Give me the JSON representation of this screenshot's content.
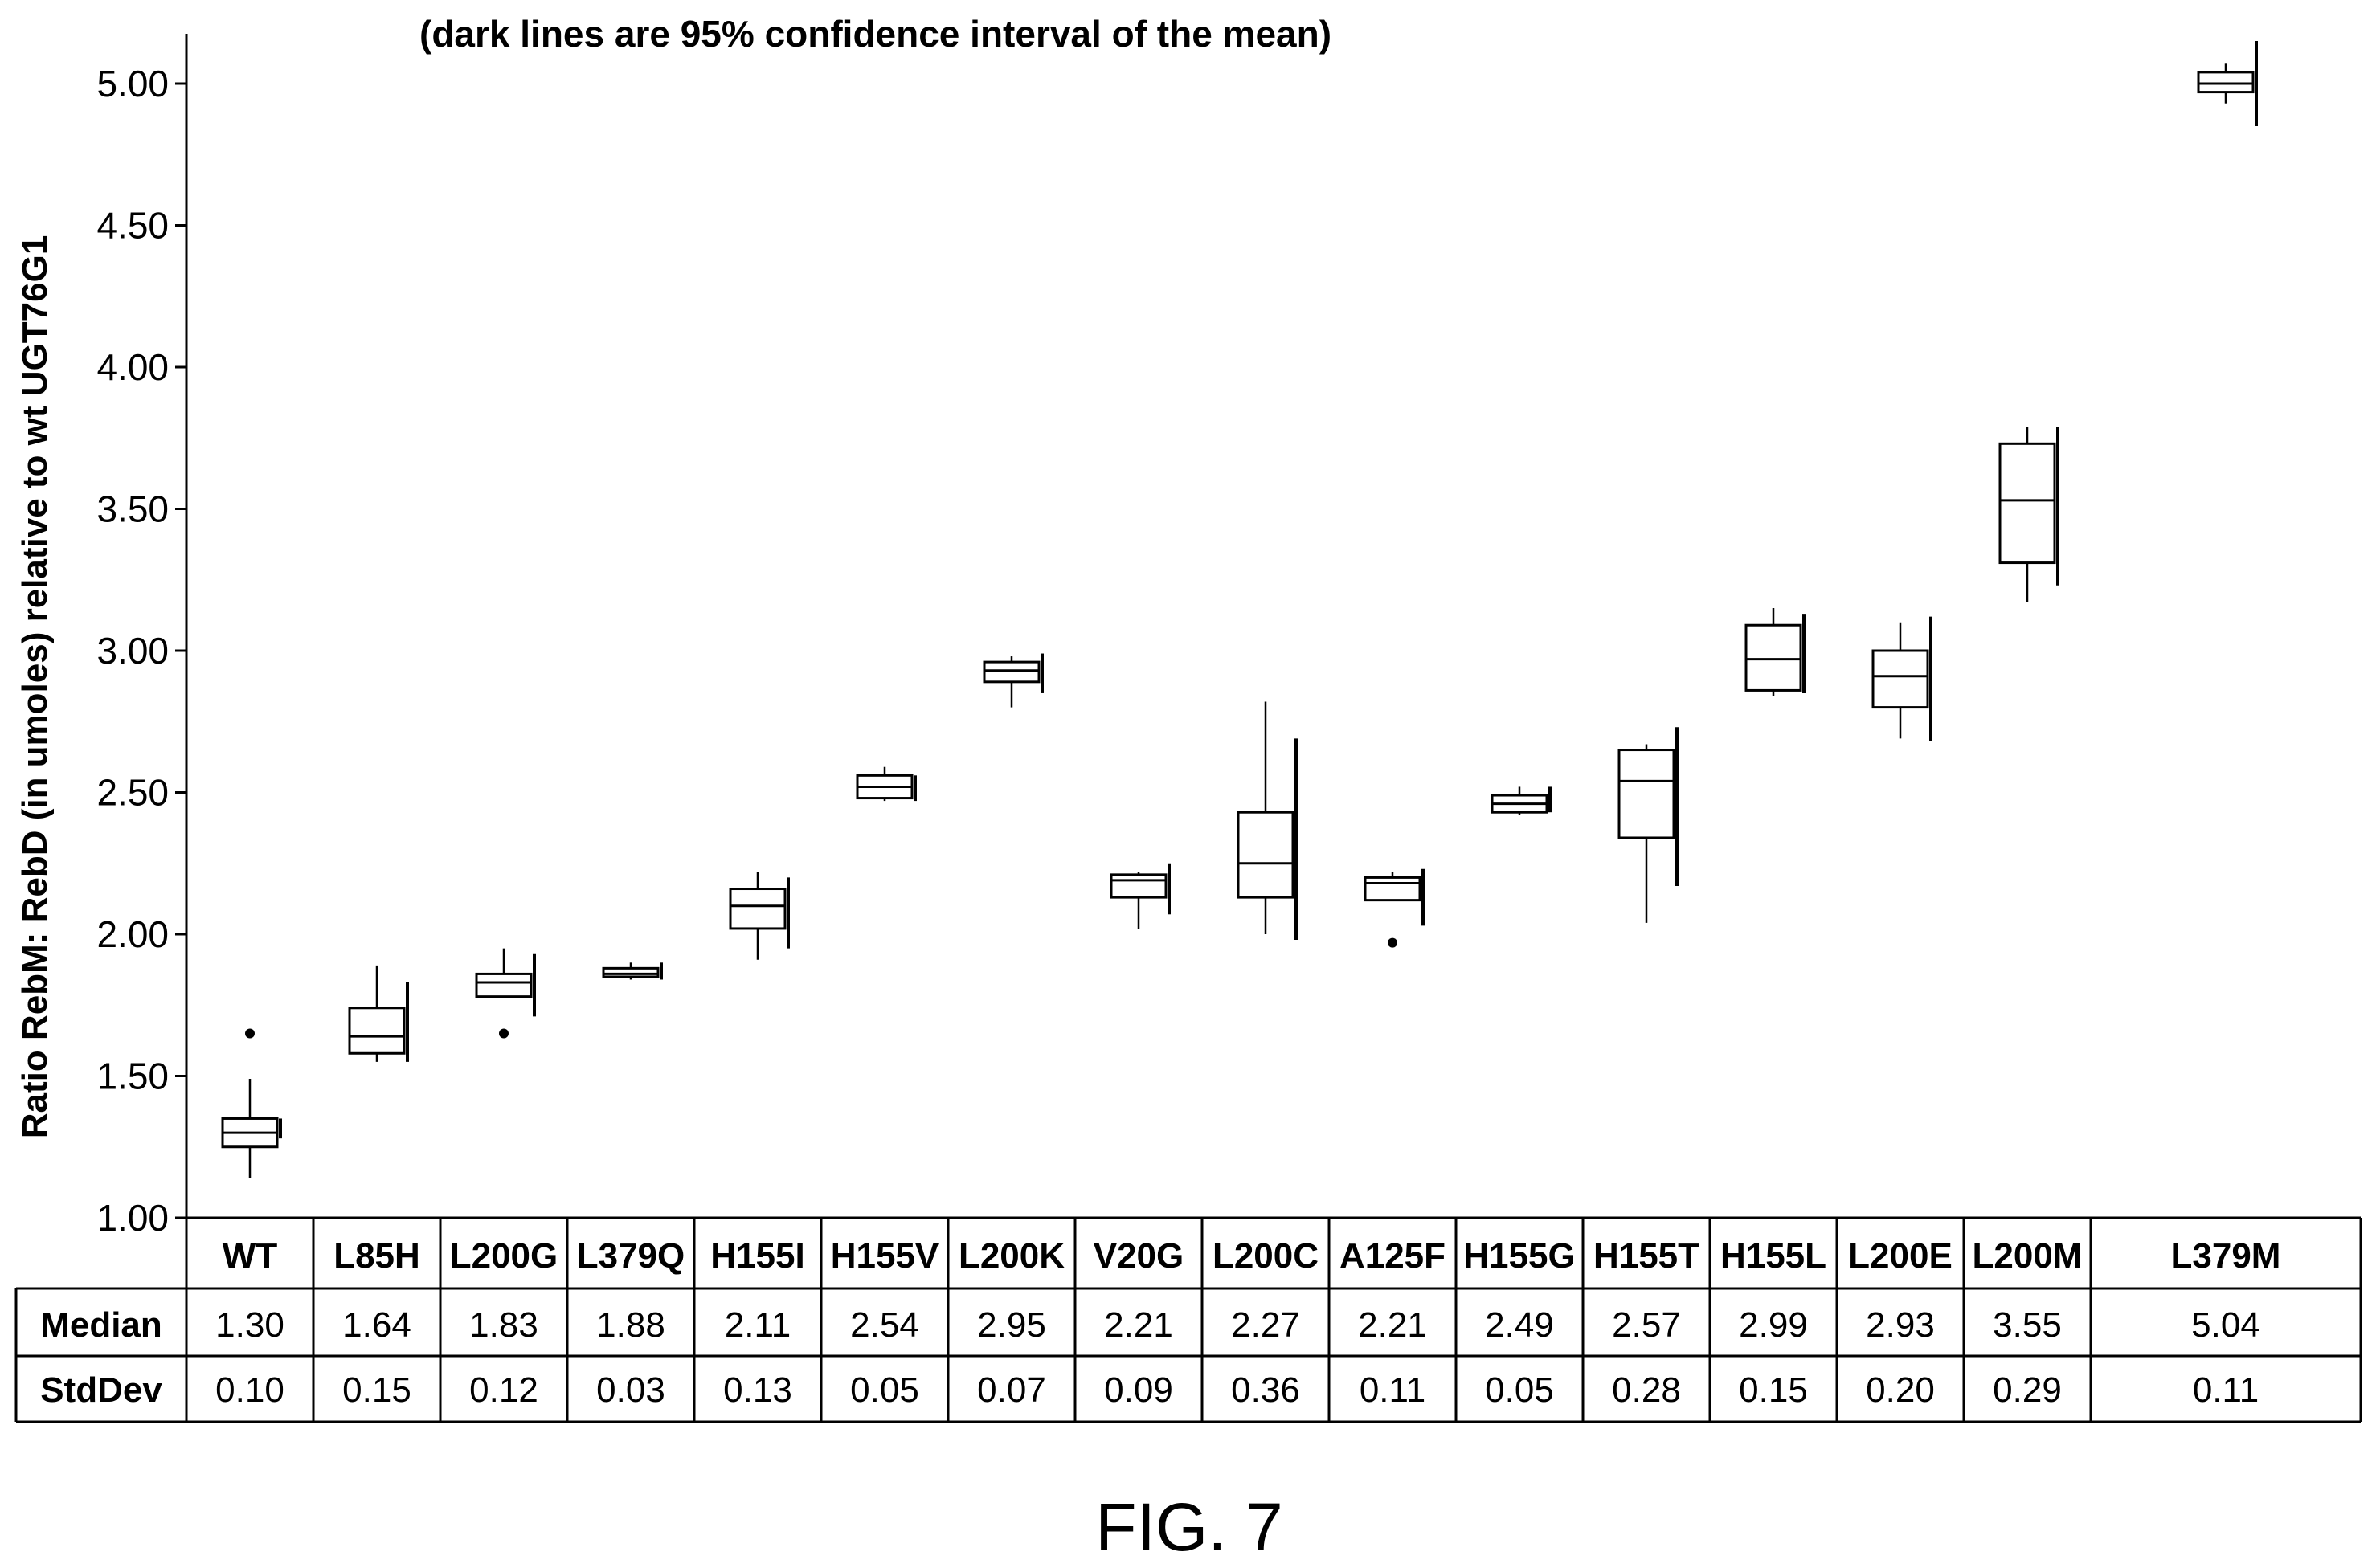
{
  "chart_data": {
    "type": "box",
    "annotation": "(dark lines are 95% confidence interval of the mean)",
    "ylabel": "Ratio RebM: RebD (in umoles) relative to wt UGT76G1",
    "xlabel": "",
    "ylim": [
      1.0,
      5.0
    ],
    "yticks": [
      "1.00",
      "1.50",
      "2.00",
      "2.50",
      "3.00",
      "3.50",
      "4.00",
      "4.50",
      "5.00"
    ],
    "grid": false,
    "categories": [
      "WT",
      "L85H",
      "L200G",
      "L379Q",
      "H155I",
      "H155V",
      "L200K",
      "V20G",
      "L200C",
      "A125F",
      "H155G",
      "H155T",
      "H155L",
      "L200E",
      "L200M",
      "L379M"
    ],
    "boxes": [
      {
        "whisker_low": 1.14,
        "q1": 1.25,
        "median": 1.3,
        "q3": 1.35,
        "whisker_high": 1.49,
        "ci": [
          1.28,
          1.35
        ],
        "outliers": [
          1.65
        ]
      },
      {
        "whisker_low": 1.55,
        "q1": 1.58,
        "median": 1.64,
        "q3": 1.74,
        "whisker_high": 1.89,
        "ci": [
          1.55,
          1.83
        ],
        "outliers": []
      },
      {
        "whisker_low": 1.78,
        "q1": 1.78,
        "median": 1.83,
        "q3": 1.86,
        "whisker_high": 1.95,
        "ci": [
          1.71,
          1.93
        ],
        "outliers": [
          1.65
        ]
      },
      {
        "whisker_low": 1.84,
        "q1": 1.85,
        "median": 1.86,
        "q3": 1.88,
        "whisker_high": 1.9,
        "ci": [
          1.84,
          1.9
        ],
        "outliers": []
      },
      {
        "whisker_low": 1.91,
        "q1": 2.02,
        "median": 2.1,
        "q3": 2.16,
        "whisker_high": 2.22,
        "ci": [
          1.95,
          2.2
        ],
        "outliers": []
      },
      {
        "whisker_low": 2.47,
        "q1": 2.48,
        "median": 2.52,
        "q3": 2.56,
        "whisker_high": 2.59,
        "ci": [
          2.47,
          2.56
        ],
        "outliers": []
      },
      {
        "whisker_low": 2.8,
        "q1": 2.89,
        "median": 2.93,
        "q3": 2.96,
        "whisker_high": 2.98,
        "ci": [
          2.85,
          2.99
        ],
        "outliers": []
      },
      {
        "whisker_low": 2.02,
        "q1": 2.13,
        "median": 2.19,
        "q3": 2.21,
        "whisker_high": 2.22,
        "ci": [
          2.07,
          2.25
        ],
        "outliers": []
      },
      {
        "whisker_low": 2.0,
        "q1": 2.13,
        "median": 2.25,
        "q3": 2.43,
        "whisker_high": 2.82,
        "ci": [
          1.98,
          2.69
        ],
        "outliers": []
      },
      {
        "whisker_low": 2.12,
        "q1": 2.12,
        "median": 2.18,
        "q3": 2.2,
        "whisker_high": 2.22,
        "ci": [
          2.03,
          2.23
        ],
        "outliers": [
          1.97
        ]
      },
      {
        "whisker_low": 2.42,
        "q1": 2.43,
        "median": 2.46,
        "q3": 2.49,
        "whisker_high": 2.52,
        "ci": [
          2.43,
          2.52
        ],
        "outliers": []
      },
      {
        "whisker_low": 2.04,
        "q1": 2.34,
        "median": 2.54,
        "q3": 2.65,
        "whisker_high": 2.67,
        "ci": [
          2.17,
          2.73
        ],
        "outliers": []
      },
      {
        "whisker_low": 2.84,
        "q1": 2.86,
        "median": 2.97,
        "q3": 3.09,
        "whisker_high": 3.15,
        "ci": [
          2.85,
          3.13
        ],
        "outliers": []
      },
      {
        "whisker_low": 2.69,
        "q1": 2.8,
        "median": 2.91,
        "q3": 3.0,
        "whisker_high": 3.1,
        "ci": [
          2.68,
          3.12
        ],
        "outliers": []
      },
      {
        "whisker_low": 3.17,
        "q1": 3.31,
        "median": 3.53,
        "q3": 3.73,
        "whisker_high": 3.79,
        "ci": [
          3.23,
          3.79
        ],
        "outliers": []
      },
      {
        "whisker_low": 4.93,
        "q1": 4.97,
        "median": 5.0,
        "q3": 5.04,
        "whisker_high": 5.07,
        "ci": [
          4.85,
          5.15
        ],
        "outliers": []
      }
    ],
    "table": {
      "rows": [
        {
          "label": "Median",
          "values": [
            "1.30",
            "1.64",
            "1.83",
            "1.88",
            "2.11",
            "2.54",
            "2.95",
            "2.21",
            "2.27",
            "2.21",
            "2.49",
            "2.57",
            "2.99",
            "2.93",
            "3.55",
            "5.04"
          ]
        },
        {
          "label": "StdDev",
          "values": [
            "0.10",
            "0.15",
            "0.12",
            "0.03",
            "0.13",
            "0.05",
            "0.07",
            "0.09",
            "0.36",
            "0.11",
            "0.05",
            "0.28",
            "0.15",
            "0.20",
            "0.29",
            "0.11"
          ]
        }
      ]
    }
  },
  "caption": "FIG. 7"
}
